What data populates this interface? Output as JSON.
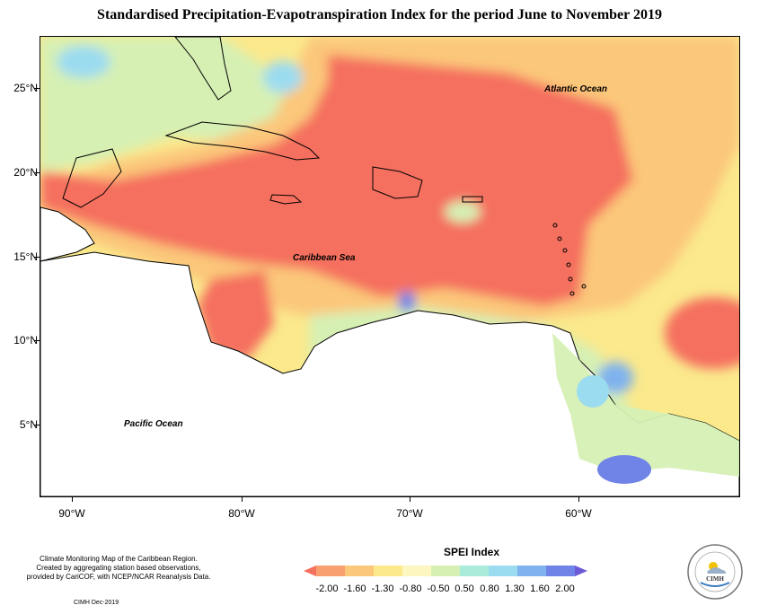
{
  "title": "Standardised Precipitation-Evapotranspiration Index for the period June to November 2019",
  "map": {
    "lat_labels": [
      "25°N",
      "20°N",
      "15°N",
      "10°N",
      "5°N"
    ],
    "lon_labels": [
      "90°W",
      "80°W",
      "70°W",
      "60°W"
    ],
    "ocean_labels": {
      "atlantic": "Atlantic Ocean",
      "caribbean": "Caribbean Sea",
      "pacific": "Pacific Ocean"
    }
  },
  "legend": {
    "title": "SPEI Index",
    "ticks": [
      "-2.00",
      "-1.60",
      "-1.30",
      "-0.80",
      "-0.50",
      "0.50",
      "0.80",
      "1.30",
      "1.60",
      "2.00"
    ],
    "colors": [
      "#f5705f",
      "#f8a070",
      "#fbc77a",
      "#fbe98c",
      "#fdf6c0",
      "#d6f0b4",
      "#a9ecd9",
      "#9cdcf0",
      "#7fb2ee",
      "#6f84e6",
      "#6a5ad6"
    ]
  },
  "credit": {
    "line1": "Climate Monitoring Map of the Caribbean Region.",
    "line2": "Created by aggregating station based observations,",
    "line3": "provided by CariCOF, with NCEP/NCAR Reanalysis Data.",
    "date": "CIMH Dec-2019"
  },
  "logo": {
    "acronym": "CIMH"
  }
}
